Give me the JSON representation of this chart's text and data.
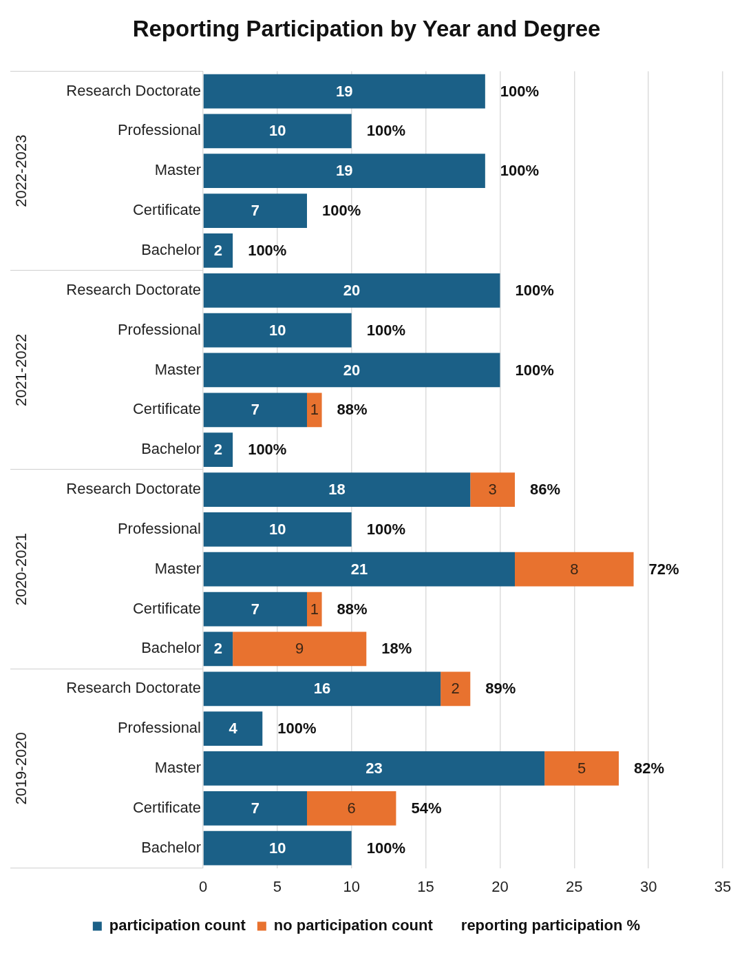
{
  "chart_data": {
    "type": "bar",
    "orientation": "horizontal",
    "stacked": true,
    "title": "Reporting Participation by Year and Degree",
    "categories": [
      "Research Doctorate",
      "Professional",
      "Master",
      "Certificate",
      "Bachelor",
      "Research Doctorate",
      "Professional",
      "Master",
      "Certificate",
      "Bachelor",
      "Research Doctorate",
      "Professional",
      "Master",
      "Certificate",
      "Bachelor",
      "Research Doctorate",
      "Professional",
      "Master",
      "Certificate",
      "Bachelor"
    ],
    "series": [
      {
        "name": "participation count",
        "color": "#1b6087",
        "values": [
          19,
          10,
          19,
          7,
          2,
          20,
          10,
          20,
          7,
          2,
          18,
          10,
          21,
          7,
          2,
          16,
          4,
          23,
          7,
          10
        ]
      },
      {
        "name": "no participation count",
        "color": "#e8722f",
        "values": [
          null,
          null,
          null,
          null,
          null,
          null,
          null,
          null,
          1,
          null,
          3,
          null,
          8,
          1,
          9,
          2,
          null,
          5,
          6,
          null
        ]
      },
      {
        "name": "reporting participation %",
        "values": [
          null,
          null,
          null,
          null,
          null,
          null,
          null,
          null,
          null,
          null,
          null,
          null,
          null,
          null,
          null,
          null,
          null,
          null,
          null,
          null
        ],
        "value_labels": [
          "100%",
          "100%",
          "100%",
          "100%",
          "100%",
          "100%",
          "100%",
          "100%",
          "88%",
          "100%",
          "86%",
          "100%",
          "72%",
          "88%",
          "18%",
          "89%",
          "100%",
          "82%",
          "54%",
          "100%"
        ]
      }
    ],
    "xlim": [
      0,
      35
    ],
    "xticks": [
      0,
      5,
      10,
      15,
      20,
      25,
      30,
      35
    ],
    "grid": "x",
    "legend": "bottom",
    "data_labels": true,
    "annotations": [
      "2022-2023",
      "2021-2022",
      "2020-2021",
      "2019-2020"
    ]
  }
}
